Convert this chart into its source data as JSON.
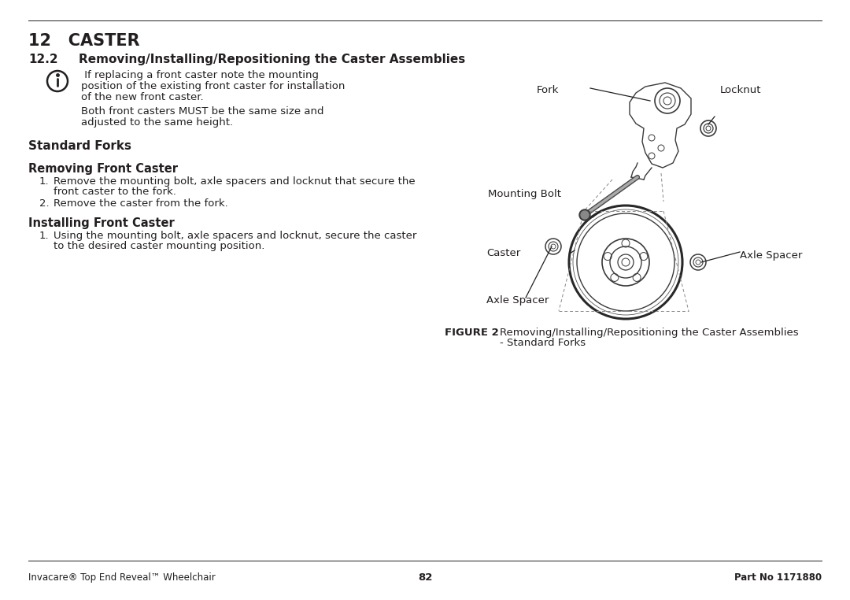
{
  "bg_color": "#ffffff",
  "text_color": "#231f20",
  "chapter_title": "12   CASTER",
  "section_number": "12.2",
  "section_text": "Removing/Installing/Repositioning the Caster Assemblies",
  "info_line1": " If replacing a front caster note the mounting",
  "info_line2": "position of the existing front caster for installation",
  "info_line3": "of the new front caster.",
  "info_line4": "Both front casters MUST be the same size and",
  "info_line5": "adjusted to the same height.",
  "std_forks_title": "Standard Forks",
  "removing_title": "Removing Front Caster",
  "remove_step1a": "Remove the mounting bolt, axle spacers and locknut that secure the",
  "remove_step1b": "front caster to the fork.",
  "remove_step2": "Remove the caster from the fork.",
  "installing_title": "Installing Front Caster",
  "install_step1a": "Using the mounting bolt, axle spacers and locknut, secure the caster",
  "install_step1b": "to the desired caster mounting position.",
  "figure_label": "FIGURE 2",
  "figure_caption1": "Removing/Installing/Repositioning the Caster Assemblies",
  "figure_caption2": "- Standard Forks",
  "footer_left": "Invacare® Top End Reveal™ Wheelchair",
  "footer_center": "82",
  "footer_right": "Part No 1171880",
  "dark": "#2a2a2a",
  "mid": "#555555",
  "light": "#888888"
}
